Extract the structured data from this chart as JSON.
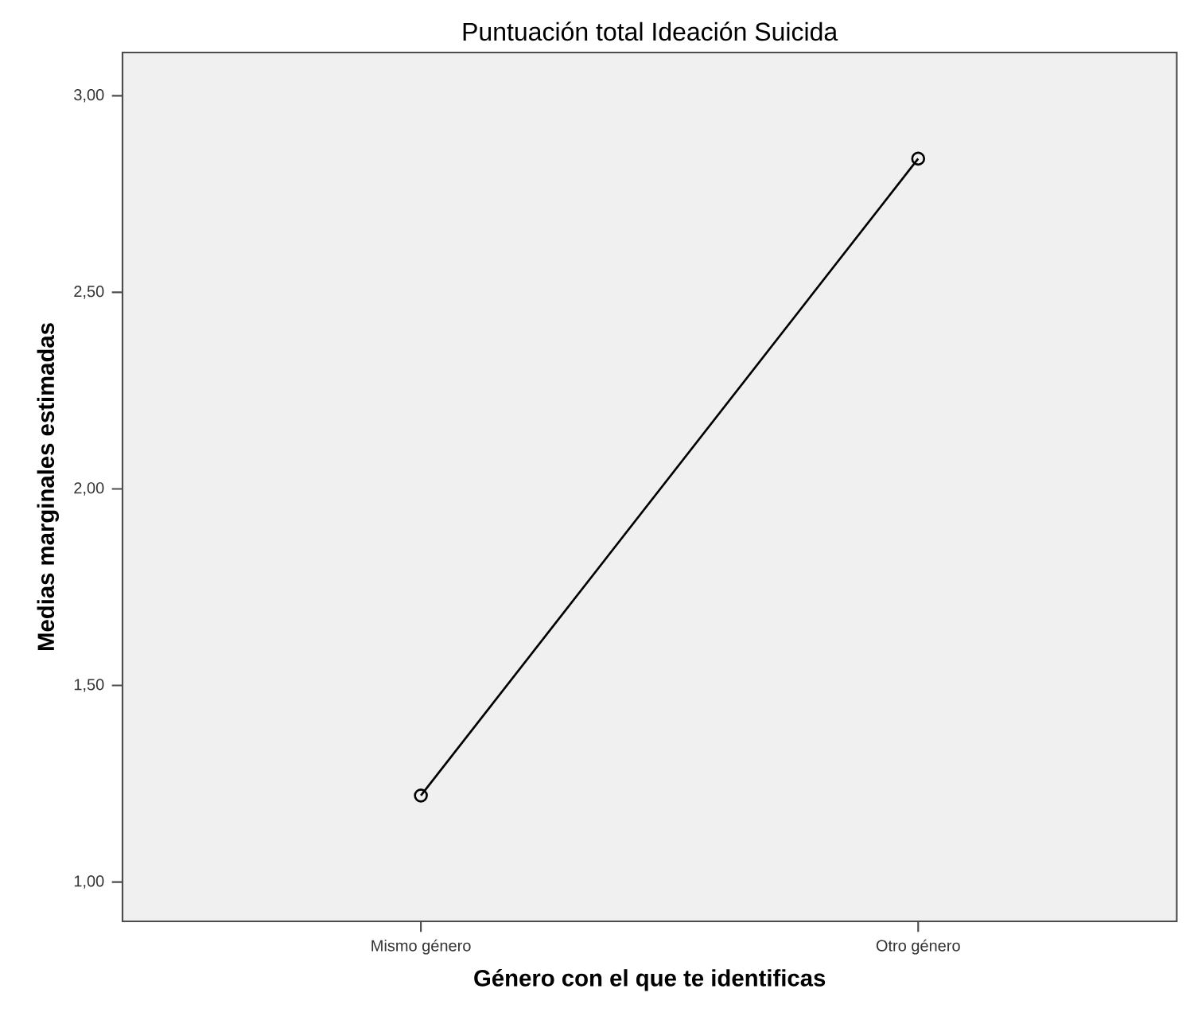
{
  "chart_data": {
    "type": "line",
    "title": "Puntuación total Ideación Suicida",
    "xlabel": "Género con el que te identificas",
    "ylabel": "Medias marginales estimadas",
    "categories": [
      "Mismo género",
      "Otro género"
    ],
    "series": [
      {
        "color": "#000000",
        "values": [
          1.22,
          2.84
        ]
      }
    ],
    "ylim": [
      0.9,
      3.11
    ],
    "yticks": [
      {
        "value": 1.0,
        "label": "1,00"
      },
      {
        "value": 1.5,
        "label": "1,50"
      },
      {
        "value": 2.0,
        "label": "2,00"
      },
      {
        "value": 2.5,
        "label": "2,50"
      },
      {
        "value": 3.0,
        "label": "3,00"
      }
    ],
    "marker": "circle",
    "line_style": "solid",
    "grid": false
  }
}
